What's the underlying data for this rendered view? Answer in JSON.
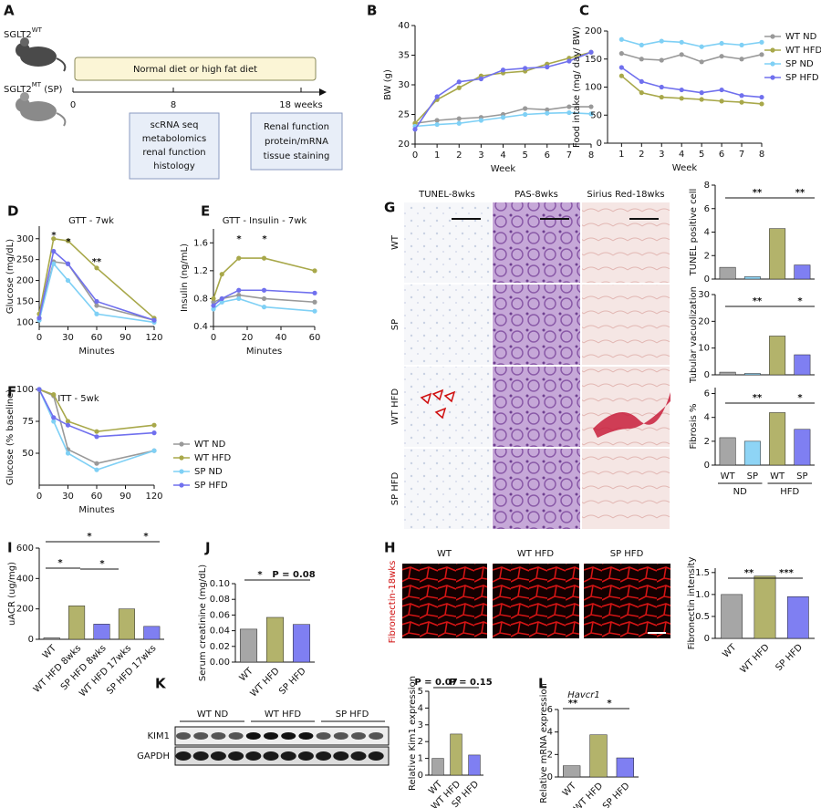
{
  "figure": {
    "A": {
      "panel": "A",
      "mouse_wt": {
        "label": "SGLT2",
        "sup": "WT"
      },
      "mouse_sp": {
        "label": "SGLT2",
        "sup": "MT",
        "suffix": " (SP)"
      },
      "diet": "Normal diet or high fat diet",
      "timeline": [
        "0",
        "8",
        "18 weeks"
      ],
      "box_8": [
        "scRNA seq",
        "metabolomics",
        "renal function",
        "histology"
      ],
      "box_18": [
        "Renal function",
        "protein/mRNA",
        "tissue staining"
      ]
    },
    "G": {
      "panel": "G",
      "columns": [
        "TUNEL-8wks",
        "PAS-8wks",
        "Sirius Red-18wks"
      ],
      "rows": [
        "WT",
        "SP",
        "WT HFD",
        "SP HFD"
      ]
    },
    "H": {
      "panel": "H",
      "columns": [
        "WT",
        "WT HFD",
        "SP HFD"
      ],
      "stain": "Fibronectin-18wks"
    },
    "K": {
      "panel": "K",
      "groups": [
        "WT ND",
        "WT HFD",
        "SP HFD"
      ],
      "bands": [
        "KIM1",
        "GAPDH"
      ]
    }
  },
  "chart_data": [
    {
      "type": "line",
      "panel": "B",
      "ylabel": "BW (g)",
      "xlabel": "Week",
      "x": [
        0,
        1,
        2,
        3,
        4,
        5,
        6,
        7,
        8
      ],
      "xlim": [
        0,
        8
      ],
      "xticks": [
        0,
        1,
        2,
        3,
        4,
        5,
        6,
        7,
        8
      ],
      "ylim": [
        20,
        40
      ],
      "yticks": [
        20,
        25,
        30,
        35,
        40
      ],
      "series": [
        {
          "color": "#999999",
          "values": [
            23.5,
            24,
            24.3,
            24.5,
            25,
            26,
            25.8,
            26.3,
            26.3
          ]
        },
        {
          "color": "#a8a84a",
          "values": [
            23.5,
            27.5,
            29.5,
            31.5,
            32,
            32.3,
            33.5,
            34.5,
            35.5
          ]
        },
        {
          "color": "#7fd0f5",
          "values": [
            23,
            23.3,
            23.5,
            24,
            24.5,
            25,
            25.2,
            25.3,
            25.1
          ]
        },
        {
          "color": "#7070ee",
          "values": [
            22.5,
            28,
            30.5,
            31,
            32.5,
            32.8,
            33,
            34,
            35.5
          ]
        }
      ]
    },
    {
      "type": "line",
      "panel": "C",
      "ylabel": "Food intake (mg/ day/ BW)",
      "xlabel": "Week",
      "legend": "right",
      "x": [
        1,
        2,
        3,
        4,
        5,
        6,
        7,
        8
      ],
      "xlim": [
        0.3,
        8
      ],
      "xticks": [
        1,
        2,
        3,
        4,
        5,
        6,
        7,
        8
      ],
      "ylim": [
        0,
        200
      ],
      "yticks": [
        0,
        50,
        100,
        150,
        200
      ],
      "series": [
        {
          "name": "WT ND",
          "color": "#999999",
          "values": [
            160,
            150,
            148,
            158,
            145,
            155,
            150,
            158
          ]
        },
        {
          "name": "WT HFD",
          "color": "#a8a84a",
          "values": [
            120,
            90,
            82,
            80,
            78,
            75,
            73,
            70
          ]
        },
        {
          "name": "SP ND",
          "color": "#7fd0f5",
          "values": [
            185,
            175,
            182,
            180,
            172,
            178,
            175,
            180
          ]
        },
        {
          "name": "SP HFD",
          "color": "#7070ee",
          "values": [
            135,
            110,
            100,
            95,
            90,
            95,
            85,
            82
          ]
        }
      ]
    },
    {
      "type": "line",
      "panel": "D",
      "title": "GTT - 7wk",
      "ylabel": "Glucose (mg/dL)",
      "xlabel": "Minutes",
      "x": [
        0,
        15,
        30,
        60,
        120
      ],
      "xlim": [
        0,
        120
      ],
      "xticks": [
        0,
        30,
        60,
        90,
        120
      ],
      "ylim": [
        90,
        330
      ],
      "yticks": [
        100,
        150,
        200,
        250,
        300
      ],
      "annotations": [
        "*",
        "*",
        "**"
      ],
      "series": [
        {
          "color": "#999999",
          "values": [
            110,
            245,
            240,
            140,
            105
          ]
        },
        {
          "color": "#a8a84a",
          "values": [
            120,
            300,
            295,
            230,
            110
          ]
        },
        {
          "color": "#7fd0f5",
          "values": [
            105,
            240,
            200,
            120,
            100
          ]
        },
        {
          "color": "#7070ee",
          "values": [
            110,
            270,
            240,
            150,
            105
          ]
        }
      ]
    },
    {
      "type": "line",
      "panel": "E",
      "title": "GTT - Insulin - 7wk",
      "ylabel": "Insulin (ng/mL)",
      "xlabel": "Minutes",
      "x": [
        0,
        5,
        15,
        30,
        60
      ],
      "xlim": [
        0,
        60
      ],
      "xticks": [
        0,
        20,
        40,
        60
      ],
      "ylim": [
        0.4,
        1.8
      ],
      "yticks": [
        0.4,
        0.8,
        1.2,
        1.6
      ],
      "annotations": [
        "*",
        "*"
      ],
      "series": [
        {
          "color": "#999999",
          "values": [
            0.75,
            0.8,
            0.85,
            0.8,
            0.75
          ]
        },
        {
          "color": "#a8a84a",
          "values": [
            0.8,
            1.15,
            1.38,
            1.38,
            1.2
          ]
        },
        {
          "color": "#7fd0f5",
          "values": [
            0.65,
            0.75,
            0.8,
            0.68,
            0.62
          ]
        },
        {
          "color": "#7070ee",
          "values": [
            0.7,
            0.8,
            0.92,
            0.92,
            0.88
          ]
        }
      ]
    },
    {
      "type": "line",
      "panel": "F",
      "title": "ITT - 5wk",
      "ylabel": "Glucose (% baseline)",
      "xlabel": "Minutes",
      "legend": "right",
      "x": [
        0,
        15,
        30,
        60,
        120
      ],
      "xlim": [
        0,
        120
      ],
      "xticks": [
        0,
        30,
        60,
        90,
        120
      ],
      "ylim": [
        25,
        100
      ],
      "yticks": [
        50,
        75,
        100
      ],
      "series": [
        {
          "name": "WT ND",
          "color": "#999999",
          "values": [
            100,
            95,
            53,
            42,
            52
          ]
        },
        {
          "name": "WT HFD",
          "color": "#a8a84a",
          "values": [
            100,
            96,
            75,
            67,
            72
          ]
        },
        {
          "name": "SP ND",
          "color": "#7fd0f5",
          "values": [
            100,
            75,
            50,
            37,
            52
          ]
        },
        {
          "name": "SP HFD",
          "color": "#7070ee",
          "values": [
            100,
            78,
            72,
            63,
            66
          ]
        }
      ]
    },
    {
      "type": "bar",
      "ylabel": "TUNEL positive cell",
      "values": [
        1.0,
        0.2,
        4.3,
        1.2
      ],
      "colors": [
        "#a6a6a6",
        "#8ed4f5",
        "#b3b36b",
        "#7f7ff2"
      ],
      "ylim": [
        0,
        8
      ],
      "yticks": [
        0,
        2,
        4,
        6,
        8
      ],
      "annotations": [
        "**",
        "**"
      ]
    },
    {
      "type": "bar",
      "ylabel": "Tubular vacuolization",
      "values": [
        1,
        0.5,
        14.5,
        7.5
      ],
      "colors": [
        "#a6a6a6",
        "#8ed4f5",
        "#b3b36b",
        "#7f7ff2"
      ],
      "ylim": [
        0,
        30
      ],
      "yticks": [
        0,
        10,
        20,
        30
      ],
      "annotations": [
        "**",
        "*"
      ]
    },
    {
      "type": "bar",
      "ylabel": "Fibrosis %",
      "categories": [
        "WT",
        "SP",
        "WT",
        "SP"
      ],
      "groups": [
        "ND",
        "HFD"
      ],
      "values": [
        2.3,
        2.0,
        4.4,
        3.0
      ],
      "colors": [
        "#a6a6a6",
        "#8ed4f5",
        "#b3b36b",
        "#7f7ff2"
      ],
      "ylim": [
        0,
        6.5
      ],
      "yticks": [
        0,
        2,
        4,
        6
      ],
      "annotations": [
        "**",
        "*"
      ]
    },
    {
      "type": "bar",
      "ylabel": "Fibronectin intensity",
      "categories": [
        "WT",
        "WT HFD",
        "SP HFD"
      ],
      "values": [
        1.0,
        1.42,
        0.95
      ],
      "rotate_labels": true,
      "colors": [
        "#a6a6a6",
        "#b3b36b",
        "#7f7ff2"
      ],
      "ylim": [
        0,
        1.6
      ],
      "yticks": [
        0,
        0.5,
        {
          "value": 1,
          "label": "1.0"
        },
        1.5
      ],
      "annotations": [
        "**",
        "***"
      ]
    },
    {
      "type": "bar",
      "panel": "I",
      "ylabel": "uACR (ug/mg)",
      "categories": [
        "WT",
        "WT HFD 8wks",
        "SP HFD 8wks",
        "WT HFD 17wks",
        "SP HFD 17wks"
      ],
      "values": [
        10,
        220,
        100,
        200,
        85
      ],
      "rotate_labels": true,
      "colors": [
        "#a6a6a6",
        "#b3b36b",
        "#7f7ff2",
        "#b3b36b",
        "#7f7ff2"
      ],
      "ylim": [
        0,
        600
      ],
      "yticks": [
        0,
        200,
        400,
        600
      ],
      "annotations": [
        "*",
        "*",
        "*",
        "*"
      ]
    },
    {
      "type": "bar",
      "panel": "J",
      "ylabel": "Serum creatinine (mg/dL)",
      "categories": [
        "WT",
        "WT HFD",
        "SP HFD"
      ],
      "values": [
        0.042,
        0.057,
        0.048
      ],
      "rotate_labels": true,
      "colors": [
        "#a6a6a6",
        "#b3b36b",
        "#7f7ff2"
      ],
      "ylim": [
        0,
        0.1
      ],
      "yticks": [
        {
          "value": 0,
          "label": "0.00"
        },
        {
          "value": 0.02,
          "label": "0.02"
        },
        {
          "value": 0.04,
          "label": "0.04"
        },
        {
          "value": 0.06,
          "label": "0.06"
        },
        {
          "value": 0.08,
          "label": "0.08"
        },
        {
          "value": 0.1,
          "label": "0.10"
        }
      ],
      "annotations": [
        "*",
        "P = 0.08"
      ]
    },
    {
      "type": "bar",
      "ylabel": "Relative Kim1 expression",
      "categories": [
        "WT",
        "WT HFD",
        "SP HFD"
      ],
      "values": [
        1.0,
        2.45,
        1.2
      ],
      "rotate_labels": true,
      "colors": [
        "#a6a6a6",
        "#b3b36b",
        "#7f7ff2"
      ],
      "ylim": [
        0,
        5
      ],
      "yticks": [
        0,
        1,
        2,
        3,
        4,
        5
      ],
      "annotations": [
        "P = 0.07",
        "P = 0.15"
      ]
    },
    {
      "type": "bar",
      "panel": "L",
      "title": "Havcr1",
      "ylabel": "Relative mRNA expression",
      "categories": [
        "WT",
        "WT HFD",
        "SP HFD"
      ],
      "values": [
        1.0,
        3.75,
        1.7
      ],
      "rotate_labels": true,
      "colors": [
        "#a6a6a6",
        "#b3b36b",
        "#7f7ff2"
      ],
      "ylim": [
        0,
        6
      ],
      "yticks": [
        0,
        2,
        4,
        6
      ],
      "annotations": [
        "**",
        "*"
      ]
    }
  ]
}
